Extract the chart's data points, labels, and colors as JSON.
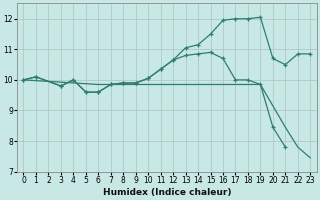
{
  "xlabel": "Humidex (Indice chaleur)",
  "xlim": [
    -0.5,
    23.5
  ],
  "ylim": [
    7,
    12.5
  ],
  "yticks": [
    7,
    8,
    9,
    10,
    11,
    12
  ],
  "xtick_labels": [
    "0",
    "1",
    "2",
    "3",
    "4",
    "5",
    "6",
    "7",
    "8",
    "9",
    "10",
    "11",
    "12",
    "13",
    "14",
    "15",
    "16",
    "17",
    "18",
    "19",
    "20",
    "21",
    "22",
    "23"
  ],
  "bg_color": "#c8e8e5",
  "grid_color": "#b0c8c5",
  "line_color": "#2e7d72",
  "lines": [
    {
      "x": [
        0,
        1,
        3,
        4,
        5,
        6,
        7,
        8,
        9,
        10,
        11,
        12,
        13,
        14,
        15,
        16,
        17,
        18,
        19,
        20,
        21,
        22,
        23
      ],
      "y": [
        10.0,
        10.1,
        9.8,
        10.0,
        9.6,
        9.6,
        9.85,
        9.9,
        9.9,
        10.05,
        10.35,
        10.65,
        11.05,
        11.15,
        11.5,
        11.95,
        12.0,
        12.0,
        12.05,
        10.7,
        10.5,
        10.85,
        10.85
      ],
      "marker": true
    },
    {
      "x": [
        0,
        1,
        3,
        4,
        5,
        6,
        7,
        8,
        9,
        10,
        11,
        12,
        13,
        14,
        15,
        16,
        17,
        18,
        19,
        20,
        21
      ],
      "y": [
        10.0,
        10.1,
        9.8,
        10.0,
        9.6,
        9.6,
        9.85,
        9.9,
        9.9,
        10.05,
        10.35,
        10.65,
        10.8,
        10.85,
        10.9,
        10.7,
        10.0,
        10.0,
        9.85,
        8.45,
        7.8
      ],
      "marker": true
    },
    {
      "x": [
        0,
        6,
        19,
        21,
        22,
        23
      ],
      "y": [
        10.0,
        9.85,
        9.85,
        8.45,
        7.8,
        7.45
      ],
      "marker": false
    }
  ]
}
